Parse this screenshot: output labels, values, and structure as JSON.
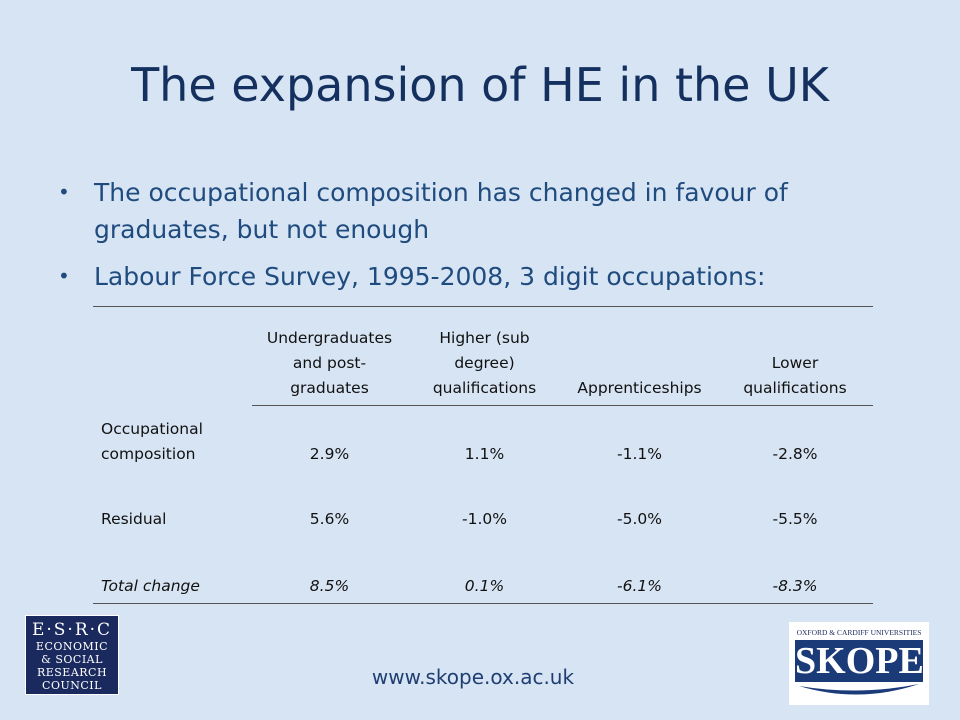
{
  "title": "The expansion of HE in the UK",
  "bullets": [
    "The occupational composition has changed in favour of graduates, but not enough",
    "Labour Force Survey, 1995-2008, 3 digit occupations:"
  ],
  "table": {
    "headers": [
      "Undergraduates and post-graduates",
      "Higher (sub degree) qualifications",
      "Apprenticeships",
      "Lower qualifications"
    ],
    "rows": [
      [
        "Occupational composition",
        "2.9%",
        "1.1%",
        "-1.1%",
        "-2.8%"
      ],
      [
        "Residual",
        "5.6%",
        "-1.0%",
        "-5.0%",
        "-5.5%"
      ],
      [
        "Total change",
        "8.5%",
        "0.1%",
        "-6.1%",
        "-8.3%"
      ]
    ]
  },
  "logos": {
    "esrc": [
      "E·S·R·C",
      "ECONOMIC",
      "& SOCIAL",
      "RESEARCH",
      "COUNCIL"
    ],
    "skope": {
      "subtitle": "OXFORD & CARDIFF UNIVERSITIES",
      "name": "SKOPE"
    }
  },
  "footer": "www.skope.ox.ac.uk"
}
